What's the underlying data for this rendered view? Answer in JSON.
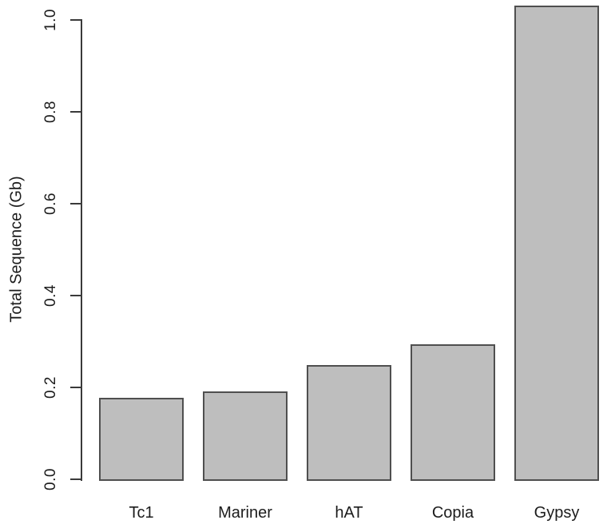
{
  "figure": {
    "background": "#ffffff"
  },
  "chart_data": {
    "type": "bar",
    "title": "",
    "categories": [
      "Tc1",
      "Mariner",
      "hAT",
      "Copia",
      "Gypsy"
    ],
    "values": [
      0.18,
      0.195,
      0.252,
      0.297,
      1.035
    ],
    "xlabel": "",
    "ylabel": "Total Sequence (Gb)",
    "ylim": [
      0.0,
      1.0
    ],
    "yticks": [
      0.0,
      0.2,
      0.4,
      0.6,
      0.8,
      1.0
    ],
    "ytick_labels": [
      "0.0",
      "0.2",
      "0.4",
      "0.6",
      "0.8",
      "1.0"
    ],
    "grid": false,
    "legend": "none",
    "bar_fill": "#bebebe",
    "bar_border": "#4f4f4f",
    "axis_color": "#3a3a3a",
    "text_color": "#1c1c1c"
  }
}
